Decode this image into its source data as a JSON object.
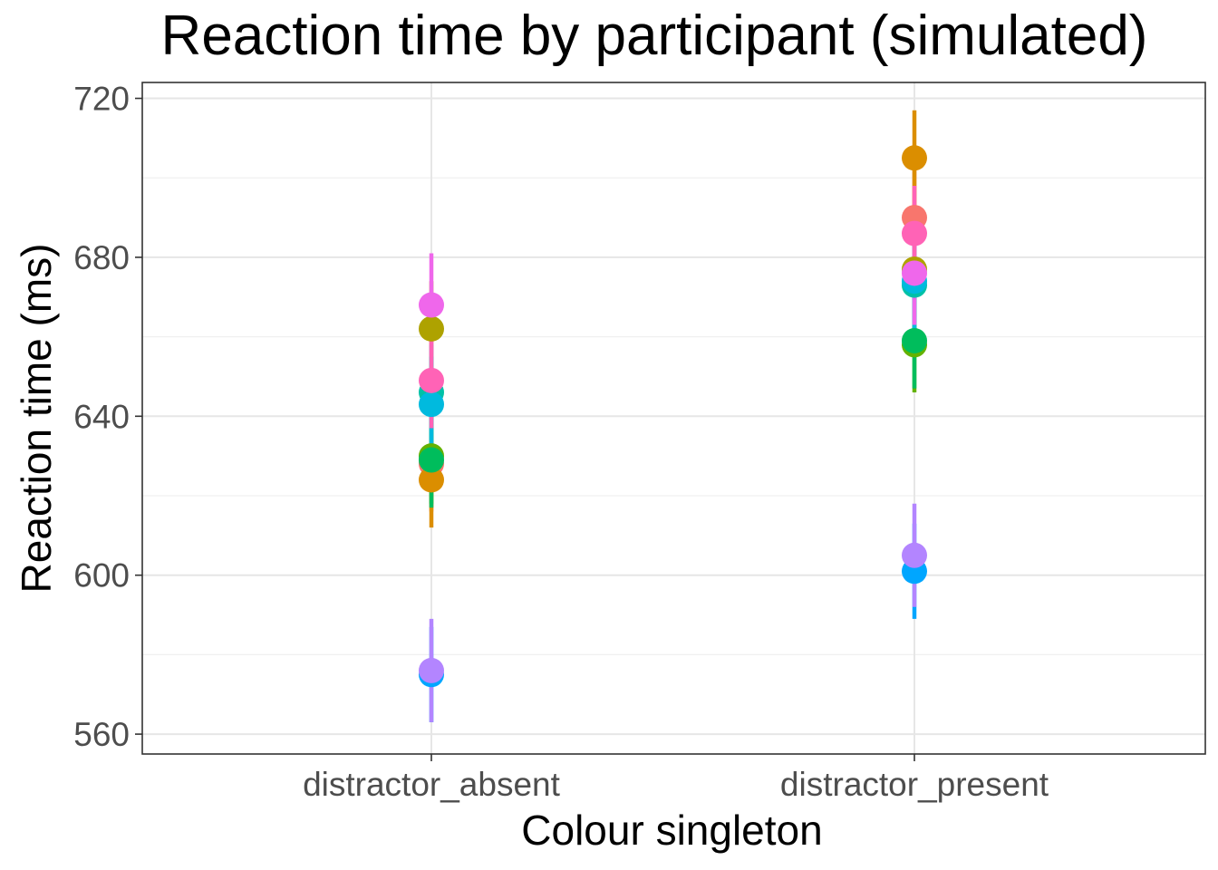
{
  "chart_data": {
    "type": "scatter",
    "title": "Reaction time by participant (simulated)",
    "xlabel": "Colour singleton",
    "ylabel": "Reaction time (ms)",
    "categories": [
      "distractor_absent",
      "distractor_present"
    ],
    "ylim": [
      555,
      724
    ],
    "yticks": [
      560,
      600,
      640,
      680,
      720
    ],
    "grid": true,
    "series": [
      {
        "color": "#F8766D",
        "values": [
          628,
          690
        ],
        "err": [
          12,
          12
        ]
      },
      {
        "color": "#DB8E00",
        "values": [
          624,
          705
        ],
        "err": [
          12,
          12
        ]
      },
      {
        "color": "#AEA200",
        "values": [
          662,
          677
        ],
        "err": [
          12,
          12
        ]
      },
      {
        "color": "#64B200",
        "values": [
          630,
          658
        ],
        "err": [
          12,
          12
        ]
      },
      {
        "color": "#00BD5C",
        "values": [
          629,
          659
        ],
        "err": [
          12,
          12
        ]
      },
      {
        "color": "#00C1A7",
        "values": [
          646,
          673
        ],
        "err": [
          12,
          12
        ]
      },
      {
        "color": "#00BADE",
        "values": [
          643,
          674
        ],
        "err": [
          12,
          12
        ]
      },
      {
        "color": "#00A6FF",
        "values": [
          575,
          601
        ],
        "err": [
          12,
          12
        ]
      },
      {
        "color": "#B385FF",
        "values": [
          576,
          605
        ],
        "err": [
          13,
          13
        ]
      },
      {
        "color": "#EF67EB",
        "values": [
          668,
          676
        ],
        "err": [
          13,
          13
        ]
      },
      {
        "color": "#FF63B6",
        "values": [
          649,
          686
        ],
        "err": [
          12,
          12
        ]
      }
    ]
  }
}
